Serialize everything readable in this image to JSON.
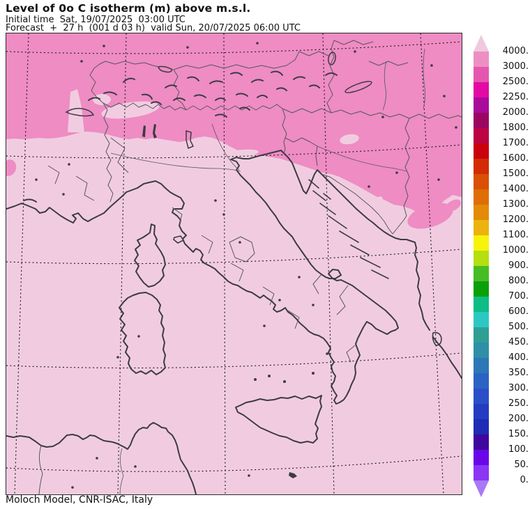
{
  "header": {
    "title": "Level of 0o C isotherm (m) above m.s.l.",
    "initial_time_line": "Initial time  Sat, 19/07/2025  03:00 UTC",
    "forecast_line": "Forecast  +  27 h  (001 d 03 h)  valid Sun, 20/07/2025 06:00 UTC"
  },
  "footer": {
    "credit": "Moloch Model, CNR-ISAC, Italy"
  },
  "colorbar": {
    "labels": [
      "4000.",
      "3000.",
      "2500.",
      "2250.",
      "2000.",
      "1800.",
      "1700.",
      "1600.",
      "1500.",
      "1400.",
      "1300.",
      "1200.",
      "1100.",
      "1000.",
      "900.",
      "800.",
      "700.",
      "600.",
      "500.",
      "450.",
      "400.",
      "350.",
      "300.",
      "250.",
      "200.",
      "150.",
      "100.",
      "50.",
      "0."
    ],
    "segment_colors": [
      "#ee8fc4",
      "#e557ae",
      "#e30aa3",
      "#a90a9b",
      "#9b0663",
      "#bc0343",
      "#ca020e",
      "#d32b04",
      "#d94f04",
      "#df6e03",
      "#e38a06",
      "#ecb30d",
      "#f7f30a",
      "#b5df11",
      "#46bd23",
      "#0aa00a",
      "#0cbd85",
      "#2bc8c3",
      "#2f9f95",
      "#2e8fa6",
      "#2d77b6",
      "#2b63c5",
      "#2a4fc9",
      "#243cc2",
      "#1f2bb4",
      "#40079f",
      "#6a07e9",
      "#8b36f4"
    ],
    "above_max_color": "#efc9de",
    "below_min_color": "#a978f6"
  },
  "map": {
    "fill_above_4000": "#f1cce0",
    "fill_3000_4000": "#ee8cc3",
    "coast_color": "#3b3b43",
    "border_color": "#56565e",
    "graticule_color": "#141414"
  }
}
